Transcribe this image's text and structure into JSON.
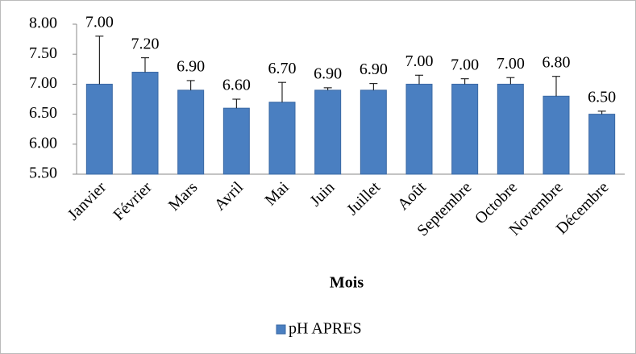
{
  "chart_data": {
    "type": "bar",
    "categories": [
      "Janvier",
      "Février",
      "Mars",
      "Avril",
      "Mai",
      "Juin",
      "Juillet",
      "Août",
      "Septembre",
      "Octobre",
      "Novembre",
      "Décembre"
    ],
    "values": [
      7,
      7.2,
      6.9,
      6.6,
      6.7,
      6.9,
      6.9,
      7,
      7,
      7,
      6.8,
      6.5
    ],
    "value_labels": [
      "7.00",
      "7.20",
      "6.90",
      "6.60",
      "6.70",
      "6.90",
      "6.90",
      "7.00",
      "7.00",
      "7.00",
      "6.80",
      "6.50"
    ],
    "errors": [
      0.8,
      0.24,
      0.16,
      0.15,
      0.33,
      0.04,
      0.11,
      0.15,
      0.09,
      0.11,
      0.33,
      0.05
    ],
    "color": "#4a7fc1",
    "series_name": "pH APRES",
    "xlabel": "Mois",
    "ylim": [
      5.5,
      8
    ],
    "yticks": [
      {
        "value": 5.5,
        "label": "5.50"
      },
      {
        "value": 6,
        "label": "6.00"
      },
      {
        "value": 6.5,
        "label": "6.50"
      },
      {
        "value": 7,
        "label": "7.00"
      },
      {
        "value": 7.5,
        "label": "7.50"
      },
      {
        "value": 8,
        "label": "8.00"
      }
    ],
    "grid": false,
    "legend": "bottom"
  }
}
